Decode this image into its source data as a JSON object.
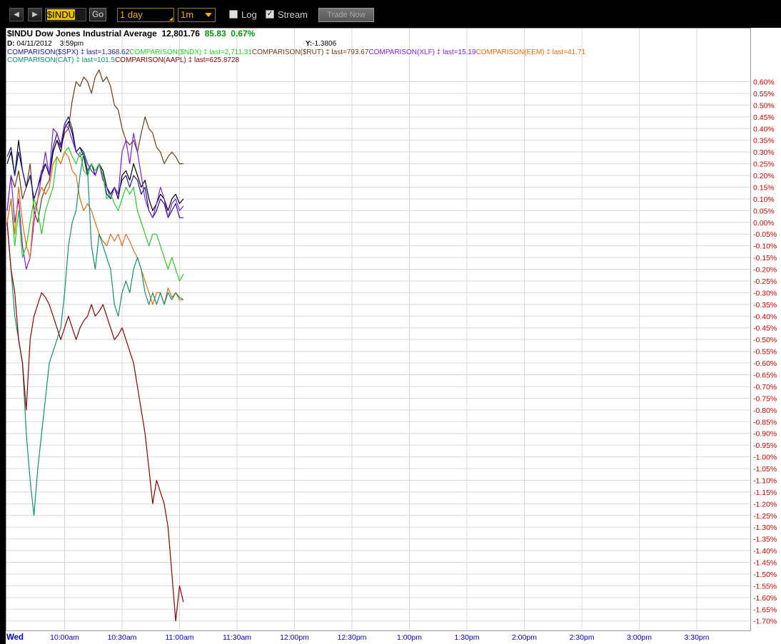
{
  "toolbar": {
    "prev_icon": "chevron-left-icon",
    "next_icon": "chevron-right-icon",
    "prev_glyph": "◀",
    "next_glyph": "▶",
    "symbol": "$INDU",
    "go_label": "Go",
    "period": "1 day",
    "interval": "1m",
    "log_label": "Log",
    "log_checked": false,
    "stream_label": "Stream",
    "stream_checked": true,
    "stream_glyph": "✓",
    "trade_label": "Trade Now"
  },
  "header": {
    "symbol": "$INDU",
    "name": "Dow Jones Industrial Average",
    "last": "12,801.76",
    "change": "85.83",
    "change_pct": "0.67%",
    "date_label": "D:",
    "date": "04/11/2012",
    "time": "3:59pm",
    "y_label": "Y:",
    "y_value": "-1.3806"
  },
  "colors": {
    "INDU": "#000000",
    "SPX": "#1a1a8c",
    "NDX": "#22cc22",
    "RUT": "#6b3a16",
    "XLF": "#7a1ee0",
    "EEM": "#e06a10",
    "CAT": "#109070",
    "AAPL": "#8b0000",
    "grid": "#d8d8d8",
    "axis_text": "#cc0000",
    "time_text": "#0000cc"
  },
  "chart_data": {
    "type": "line",
    "title": "$INDU Dow Jones Industrial Average",
    "x_start": "9:30am",
    "x_interval_minutes": 2,
    "x_ticks": [
      "Wed",
      "10:00am",
      "10:30am",
      "11:00am",
      "11:30am",
      "12:00pm",
      "12:30pm",
      "1:00pm",
      "1:30pm",
      "2:00pm",
      "2:30pm",
      "3:00pm",
      "3:30pm"
    ],
    "y_ticks": [
      "0.60%",
      "0.55%",
      "0.50%",
      "0.45%",
      "0.40%",
      "0.35%",
      "0.30%",
      "0.25%",
      "0.20%",
      "0.15%",
      "0.10%",
      "0.05%",
      "0.00%",
      "-0.05%",
      "-0.10%",
      "-0.15%",
      "-0.20%",
      "-0.25%",
      "-0.30%",
      "-0.35%",
      "-0.40%",
      "-0.45%",
      "-0.50%",
      "-0.55%",
      "-0.60%",
      "-0.65%",
      "-0.70%",
      "-0.75%",
      "-0.80%",
      "-0.85%",
      "-0.90%",
      "-0.95%",
      "-1.00%",
      "-1.05%",
      "-1.10%",
      "-1.15%",
      "-1.20%",
      "-1.25%",
      "-1.30%",
      "-1.35%",
      "-1.40%",
      "-1.45%",
      "-1.50%",
      "-1.55%",
      "-1.60%",
      "-1.65%",
      "-1.70%"
    ],
    "ylim": [
      -1.72,
      0.62
    ],
    "grid": true,
    "series": [
      {
        "id": "RUT",
        "label": "COMPARISON($RUT)",
        "last": "793.67",
        "values": [
          0.05,
          0.2,
          0.15,
          0.22,
          0.1,
          0.15,
          0.25,
          0.05,
          0,
          0.1,
          0.15,
          0.18,
          0.3,
          0.35,
          0.32,
          0.38,
          0.4,
          0.52,
          0.6,
          0.58,
          0.62,
          0.6,
          0.55,
          0.62,
          0.65,
          0.6,
          0.62,
          0.58,
          0.5,
          0.48,
          0.4,
          0.35,
          0.33,
          0.35,
          0.3,
          0.38,
          0.45,
          0.4,
          0.38,
          0.32,
          0.3,
          0.25,
          0.28,
          0.3,
          0.28,
          0.25,
          0.25
        ]
      },
      {
        "id": "INDU",
        "label": "$INDU",
        "last": "12,801.76",
        "values": [
          0.25,
          0.3,
          0.2,
          0.35,
          0.22,
          0.15,
          0.2,
          0.1,
          0.15,
          0.2,
          0.25,
          0.2,
          0.3,
          0.35,
          0.3,
          0.4,
          0.43,
          0.38,
          0.3,
          0.32,
          0.28,
          0.2,
          0.25,
          0.2,
          0.25,
          0.22,
          0.15,
          0.12,
          0.15,
          0.1,
          0.2,
          0.22,
          0.18,
          0.25,
          0.2,
          0.15,
          0.18,
          0.1,
          0.05,
          0.08,
          0.12,
          0.1,
          0.05,
          0.1,
          0.12,
          0.08,
          0.1
        ]
      },
      {
        "id": "SPX",
        "label": "COMPARISON($SPX)",
        "last": "1,368.62",
        "values": [
          0.28,
          0.32,
          0.2,
          0.3,
          0.22,
          0.15,
          0.2,
          0.1,
          0.15,
          0.22,
          0.25,
          0.2,
          0.32,
          0.38,
          0.33,
          0.42,
          0.45,
          0.4,
          0.3,
          0.32,
          0.3,
          0.22,
          0.25,
          0.2,
          0.25,
          0.2,
          0.12,
          0.1,
          0.15,
          0.12,
          0.18,
          0.2,
          0.15,
          0.2,
          0.18,
          0.12,
          0.15,
          0.05,
          0.02,
          0.05,
          0.1,
          0.08,
          0.02,
          0.05,
          0.08,
          0.02,
          0.02
        ]
      },
      {
        "id": "XLF",
        "label": "COMPARISON(XLF)",
        "last": "15.19",
        "values": [
          0.05,
          0.2,
          0.0,
          0.1,
          -0.1,
          -0.2,
          -0.15,
          0.0,
          0.1,
          0.2,
          0.3,
          0.2,
          0.4,
          0.38,
          0.32,
          0.42,
          0.4,
          0.35,
          0.3,
          0.28,
          0.3,
          0.25,
          0.22,
          0.2,
          0.25,
          0.18,
          0.15,
          0.1,
          0.15,
          0.12,
          0.3,
          0.35,
          0.25,
          0.38,
          0.3,
          0.2,
          0.1,
          0.05,
          0.02,
          0.08,
          0.15,
          0.1,
          0.02,
          0.08,
          0.1,
          0.05,
          0.07
        ]
      },
      {
        "id": "NDX",
        "label": "COMPARISON($NDX)",
        "last": "2,711.31",
        "values": [
          0.0,
          0.1,
          -0.1,
          0.05,
          -0.15,
          -0.1,
          0.0,
          0.1,
          0.05,
          -0.05,
          0.05,
          0.1,
          0.15,
          0.28,
          0.25,
          0.3,
          0.32,
          0.28,
          0.25,
          0.3,
          0.22,
          0.2,
          0.25,
          0.22,
          0.25,
          0.2,
          0.1,
          0.12,
          0.08,
          0.05,
          0.1,
          0.15,
          0.12,
          0.15,
          0.05,
          0.0,
          -0.05,
          -0.1,
          -0.05,
          -0.05,
          -0.1,
          -0.15,
          -0.2,
          -0.15,
          -0.2,
          -0.25,
          -0.22
        ]
      },
      {
        "id": "EEM",
        "label": "COMPARISON(EEM)",
        "last": "41.71",
        "values": [
          0.0,
          0.1,
          -0.05,
          0.15,
          0.0,
          -0.1,
          -0.15,
          0.05,
          0.1,
          0.15,
          0.12,
          0.15,
          0.25,
          0.28,
          0.25,
          0.3,
          0.28,
          0.22,
          0.2,
          0.1,
          0.05,
          0.08,
          0.05,
          0.0,
          -0.05,
          -0.08,
          -0.1,
          -0.05,
          -0.08,
          -0.05,
          -0.1,
          -0.05,
          -0.08,
          -0.12,
          -0.15,
          -0.2,
          -0.25,
          -0.3,
          -0.35,
          -0.3,
          -0.3,
          -0.35,
          -0.28,
          -0.32,
          -0.3,
          -0.33,
          -0.33
        ]
      },
      {
        "id": "CAT",
        "label": "COMPARISON(CAT)",
        "last": "101.5",
        "values": [
          0.0,
          -0.2,
          -0.4,
          -0.5,
          -0.6,
          -0.9,
          -1.1,
          -1.25,
          -1.05,
          -0.9,
          -0.75,
          -0.6,
          -0.55,
          -0.5,
          -0.45,
          -0.3,
          -0.1,
          0.0,
          0.05,
          0.2,
          0.3,
          0.22,
          -0.1,
          -0.2,
          -0.05,
          -0.1,
          -0.15,
          -0.2,
          -0.35,
          -0.4,
          -0.3,
          -0.25,
          -0.3,
          -0.2,
          -0.15,
          -0.2,
          -0.3,
          -0.35,
          -0.3,
          -0.35,
          -0.3,
          -0.35,
          -0.3,
          -0.33,
          -0.3,
          -0.32,
          -0.33
        ]
      },
      {
        "id": "AAPL",
        "label": "COMPARISON(AAPL)",
        "last": "625.8728",
        "values": [
          0.0,
          -0.2,
          -0.3,
          -0.5,
          -0.6,
          -0.8,
          -0.5,
          -0.4,
          -0.35,
          -0.3,
          -0.32,
          -0.35,
          -0.4,
          -0.45,
          -0.5,
          -0.45,
          -0.4,
          -0.45,
          -0.5,
          -0.45,
          -0.42,
          -0.4,
          -0.35,
          -0.4,
          -0.38,
          -0.35,
          -0.4,
          -0.45,
          -0.5,
          -0.48,
          -0.45,
          -0.5,
          -0.55,
          -0.6,
          -0.7,
          -0.8,
          -0.9,
          -1.05,
          -1.2,
          -1.1,
          -1.15,
          -1.2,
          -1.3,
          -1.5,
          -1.7,
          -1.55,
          -1.62
        ]
      }
    ]
  }
}
